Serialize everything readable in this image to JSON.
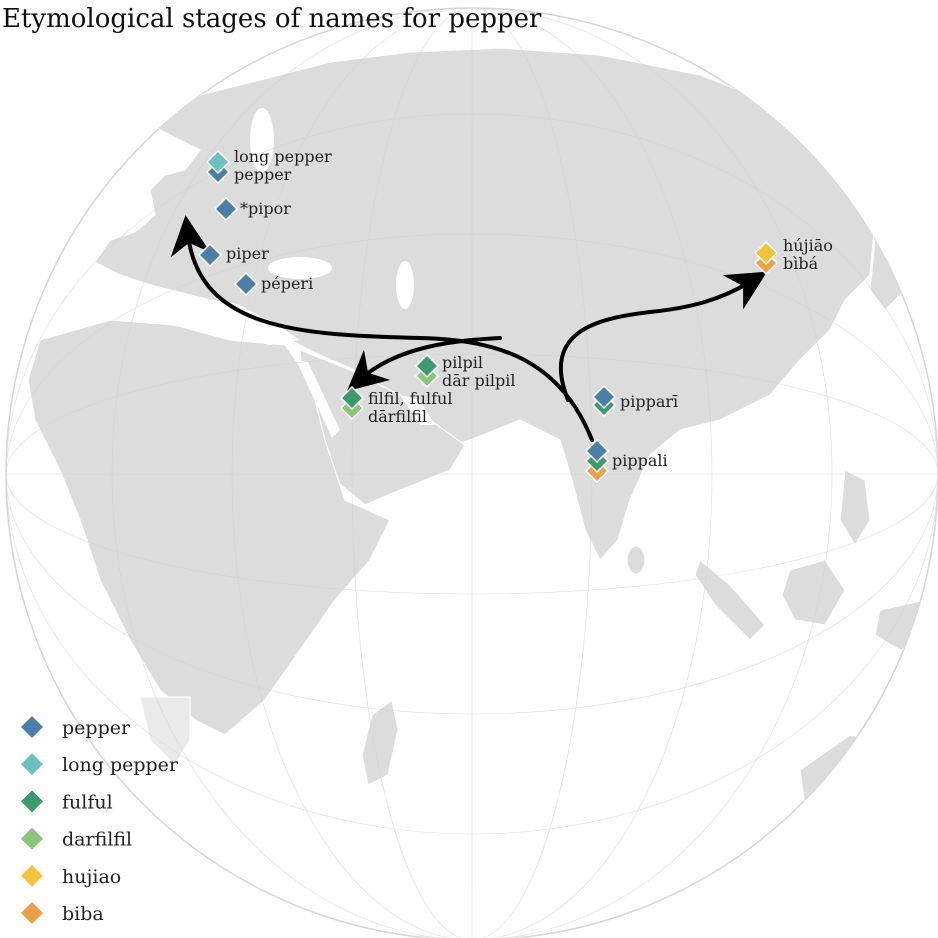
{
  "title": "Etymological stages of names for pepper",
  "colors": {
    "pepper": "#4a7fa8",
    "long_pepper": "#6cc0c0",
    "fulful": "#3d9a6c",
    "darfilfil": "#8cc47a",
    "hujiao": "#f2c43d",
    "biba": "#eda04a",
    "land": "#dcdcdc",
    "ocean": "#ffffff",
    "arrow": "#000000"
  },
  "legend": [
    {
      "key": "pepper",
      "label": "pepper"
    },
    {
      "key": "long_pepper",
      "label": "long pepper"
    },
    {
      "key": "fulful",
      "label": "fulful"
    },
    {
      "key": "darfilfil",
      "label": "darfilfil"
    },
    {
      "key": "hujiao",
      "label": "hujiao"
    },
    {
      "key": "biba",
      "label": "biba"
    }
  ],
  "places": [
    {
      "name": "english",
      "labels": [
        "long pepper",
        "pepper"
      ],
      "markers": [
        "long_pepper",
        "pepper"
      ]
    },
    {
      "name": "proto-germanic",
      "labels": [
        "*pipor"
      ],
      "markers": [
        "pepper"
      ]
    },
    {
      "name": "latin",
      "labels": [
        "piper"
      ],
      "markers": [
        "pepper"
      ]
    },
    {
      "name": "greek",
      "labels": [
        "péperi"
      ],
      "markers": [
        "pepper"
      ]
    },
    {
      "name": "persian",
      "labels": [
        "pilpil",
        "dār pilpil"
      ],
      "markers": [
        "fulful",
        "darfilfil"
      ]
    },
    {
      "name": "arabic",
      "labels": [
        "filfil, fulful",
        "dārfilfil"
      ],
      "markers": [
        "fulful",
        "darfilfil"
      ]
    },
    {
      "name": "prakrit",
      "labels": [
        "pipparī"
      ],
      "markers": [
        "pepper",
        "fulful"
      ]
    },
    {
      "name": "sanskrit",
      "labels": [
        "pippali"
      ],
      "markers": [
        "pepper",
        "fulful",
        "biba"
      ]
    },
    {
      "name": "chinese",
      "labels": [
        "hújiāo",
        "bìbá"
      ],
      "markers": [
        "hujiao",
        "biba"
      ]
    }
  ]
}
